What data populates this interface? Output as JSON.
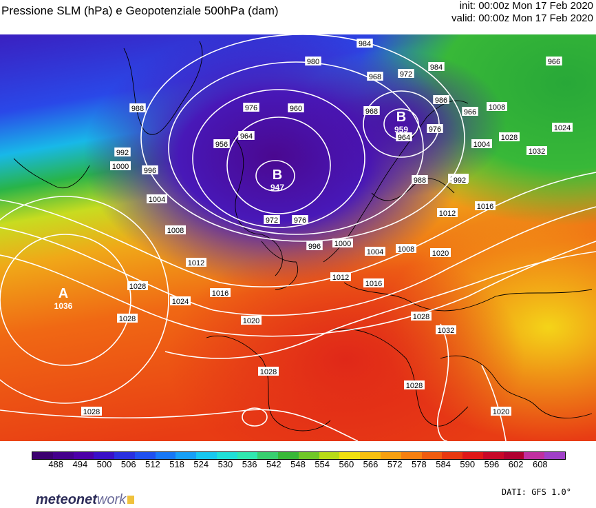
{
  "header": {
    "title": "Pressione SLM (hPa) e Geopotenziale 500hPa (dam)",
    "init": "init: 00:00z Mon 17 Feb 2020",
    "valid": "valid: 00:00z Mon 17 Feb 2020"
  },
  "map": {
    "region": "Europe / North Atlantic",
    "pressure_centers": [
      {
        "type": "high",
        "letter": "A",
        "value": "1036"
      },
      {
        "type": "low",
        "letter": "B",
        "value": "947"
      },
      {
        "type": "low",
        "letter": "B",
        "value": "959"
      }
    ],
    "isobar_labels": [
      "984",
      "980",
      "972",
      "968",
      "964",
      "960",
      "956",
      "976",
      "988",
      "992",
      "996",
      "1000",
      "1004",
      "1008",
      "1012",
      "1016",
      "1020",
      "1024",
      "1028",
      "1032",
      "966"
    ],
    "colors": {
      "deep_low": "#4a0fa8",
      "low": "#2a3ee6",
      "mid_cyan": "#10c8e0",
      "mid_green": "#28b43c",
      "yellow": "#f2dc14",
      "orange": "#f07a14",
      "red": "#e02c14",
      "isobar": "#ffffff",
      "coastline": "#000000"
    }
  },
  "legend": {
    "ticks": [
      "488",
      "494",
      "500",
      "506",
      "512",
      "518",
      "524",
      "530",
      "536",
      "542",
      "548",
      "554",
      "560",
      "566",
      "572",
      "578",
      "584",
      "590",
      "596",
      "602",
      "608"
    ],
    "colors": [
      "#3c0070",
      "#44008c",
      "#4c00a8",
      "#3a10c8",
      "#2a30e0",
      "#2050f0",
      "#1878f8",
      "#18a0f8",
      "#18c8f0",
      "#20e0d8",
      "#30e8b0",
      "#38d070",
      "#38b838",
      "#70c828",
      "#b8dc18",
      "#f0e010",
      "#f8c010",
      "#f8a010",
      "#f88010",
      "#f05c10",
      "#e83810",
      "#e01818",
      "#c80828",
      "#b00030",
      "#c030a0",
      "#a040c8"
    ]
  },
  "footer": {
    "logo_main": "meteonet",
    "logo_accent": "work",
    "source": "DATI: GFS 1.0°"
  }
}
